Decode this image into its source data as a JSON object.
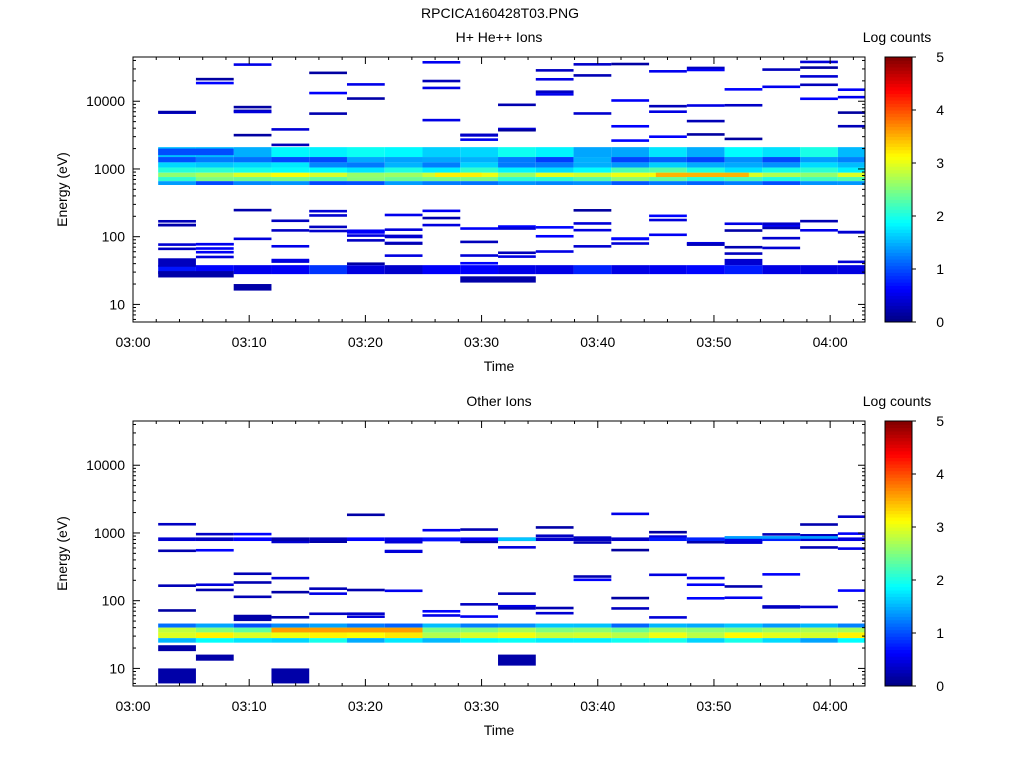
{
  "page_title": "RPCICA160428T03.PNG",
  "chart_data": [
    {
      "type": "heatmap",
      "title": "H+ He++ Ions",
      "xlabel": "Time",
      "ylabel": "Energy (eV)",
      "y_scale": "log",
      "ylim": [
        5.5,
        45000
      ],
      "xlim": [
        "03:00",
        "04:03"
      ],
      "x_ticks": [
        "03:00",
        "03:10",
        "03:20",
        "03:30",
        "03:40",
        "03:50",
        "04:00"
      ],
      "y_ticks": [
        "10",
        "100",
        "1000",
        "10000"
      ],
      "colorbar": {
        "label": "Log counts",
        "ticks": [
          "0",
          "1",
          "2",
          "3",
          "4",
          "5"
        ],
        "range": [
          0,
          5
        ]
      },
      "time_bins": [
        "03:02:10",
        "03:05:25",
        "03:08:40",
        "03:11:55",
        "03:15:10",
        "03:18:25",
        "03:21:40",
        "03:24:55",
        "03:28:10",
        "03:31:25",
        "03:34:40",
        "03:37:55",
        "03:41:10",
        "03:44:25",
        "03:47:40",
        "03:50:55",
        "03:54:10",
        "03:57:25",
        "04:00:40"
      ],
      "bands": [
        {
          "emin": 1500,
          "emax": 2100,
          "value": 1.7,
          "from": "03:02:10",
          "to": "04:03:00"
        },
        {
          "emin": 1250,
          "emax": 1500,
          "value": 1.2,
          "from": "03:02:10",
          "to": "04:03:00"
        },
        {
          "emin": 1050,
          "emax": 1250,
          "value": 1.5,
          "from": "03:02:10",
          "to": "04:03:00"
        },
        {
          "emin": 880,
          "emax": 1050,
          "value": 2.0,
          "from": "03:02:10",
          "to": "04:03:00"
        },
        {
          "emin": 760,
          "emax": 880,
          "value": 2.8,
          "from": "03:02:10",
          "to": "04:03:00"
        },
        {
          "emin": 660,
          "emax": 760,
          "value": 2.3,
          "from": "03:02:10",
          "to": "04:03:00"
        },
        {
          "emin": 580,
          "emax": 660,
          "value": 1.2,
          "from": "03:02:10",
          "to": "04:03:00"
        },
        {
          "emin": 28,
          "emax": 38,
          "value": 0.6,
          "from": "03:02:10",
          "to": "04:03:00"
        }
      ],
      "blocks": [
        {
          "from": "03:45:00",
          "to": "03:53:00",
          "emin": 760,
          "emax": 880,
          "value": 3.5
        },
        {
          "from": "03:26:00",
          "to": "03:30:00",
          "emin": 760,
          "emax": 880,
          "value": 3.2
        },
        {
          "from": "03:02:10",
          "to": "03:08:40",
          "emin": 1600,
          "emax": 2000,
          "value": 1.0
        },
        {
          "from": "03:02:10",
          "to": "03:05:25",
          "emin": 36,
          "emax": 48,
          "value": 0.3
        },
        {
          "from": "03:02:10",
          "to": "03:08:40",
          "emin": 25,
          "emax": 31,
          "value": 0.2
        },
        {
          "from": "03:08:40",
          "to": "03:11:55",
          "emin": 16,
          "emax": 20,
          "value": 0.2
        },
        {
          "from": "03:28:10",
          "to": "03:34:40",
          "emin": 21,
          "emax": 26,
          "value": 0.2
        },
        {
          "from": "03:50:55",
          "to": "03:54:10",
          "emin": 38,
          "emax": 47,
          "value": 0.4
        }
      ],
      "sparse_seed": 11,
      "sparse_count": 7,
      "sparse_ranges": [
        [
          40,
          250
        ],
        [
          2100,
          42000
        ]
      ]
    },
    {
      "type": "heatmap",
      "title": "Other Ions",
      "xlabel": "Time",
      "ylabel": "Energy (eV)",
      "y_scale": "log",
      "ylim": [
        5.5,
        45000
      ],
      "xlim": [
        "03:00",
        "04:03"
      ],
      "x_ticks": [
        "03:00",
        "03:10",
        "03:20",
        "03:30",
        "03:40",
        "03:50",
        "04:00"
      ],
      "y_ticks": [
        "10",
        "100",
        "1000",
        "10000"
      ],
      "colorbar": {
        "label": "Log counts",
        "ticks": [
          "0",
          "1",
          "2",
          "3",
          "4",
          "5"
        ],
        "range": [
          0,
          5
        ]
      },
      "time_bins": [
        "03:02:10",
        "03:05:25",
        "03:08:40",
        "03:11:55",
        "03:15:10",
        "03:18:25",
        "03:21:40",
        "03:24:55",
        "03:28:10",
        "03:31:25",
        "03:34:40",
        "03:37:55",
        "03:41:10",
        "03:44:25",
        "03:47:40",
        "03:50:55",
        "03:54:10",
        "03:57:25",
        "04:00:40"
      ],
      "bands": [
        {
          "emin": 40,
          "emax": 46,
          "value": 1.3,
          "from": "03:02:10",
          "to": "04:03:00"
        },
        {
          "emin": 34,
          "emax": 40,
          "value": 2.6,
          "from": "03:02:10",
          "to": "04:03:00"
        },
        {
          "emin": 28,
          "emax": 34,
          "value": 3.0,
          "from": "03:02:10",
          "to": "04:03:00"
        },
        {
          "emin": 24,
          "emax": 28,
          "value": 1.7,
          "from": "03:02:10",
          "to": "04:03:00"
        },
        {
          "emin": 760,
          "emax": 860,
          "value": 0.5,
          "from": "03:02:10",
          "to": "04:03:00"
        }
      ],
      "blocks": [
        {
          "from": "03:11:55",
          "to": "03:24:55",
          "emin": 34,
          "emax": 40,
          "value": 3.6
        },
        {
          "from": "03:31:25",
          "to": "03:34:40",
          "emin": 760,
          "emax": 860,
          "value": 1.6
        },
        {
          "from": "03:50:55",
          "to": "04:00:40",
          "emin": 820,
          "emax": 900,
          "value": 1.4
        },
        {
          "from": "03:02:10",
          "to": "03:05:25",
          "emin": 6,
          "emax": 10,
          "value": 0.2
        },
        {
          "from": "03:05:25",
          "to": "03:08:40",
          "emin": 13,
          "emax": 16,
          "value": 0.2
        },
        {
          "from": "03:11:55",
          "to": "03:15:10",
          "emin": 6,
          "emax": 10,
          "value": 0.2
        },
        {
          "from": "03:31:25",
          "to": "03:34:40",
          "emin": 11,
          "emax": 16,
          "value": 0.2
        },
        {
          "from": "03:02:10",
          "to": "03:05:25",
          "emin": 18,
          "emax": 22,
          "value": 0.2
        },
        {
          "from": "03:08:40",
          "to": "03:11:55",
          "emin": 50,
          "emax": 62,
          "value": 0.2
        }
      ],
      "sparse_seed": 5,
      "sparse_count": 4,
      "sparse_ranges": [
        [
          50,
          260
        ],
        [
          500,
          2000
        ]
      ]
    }
  ]
}
